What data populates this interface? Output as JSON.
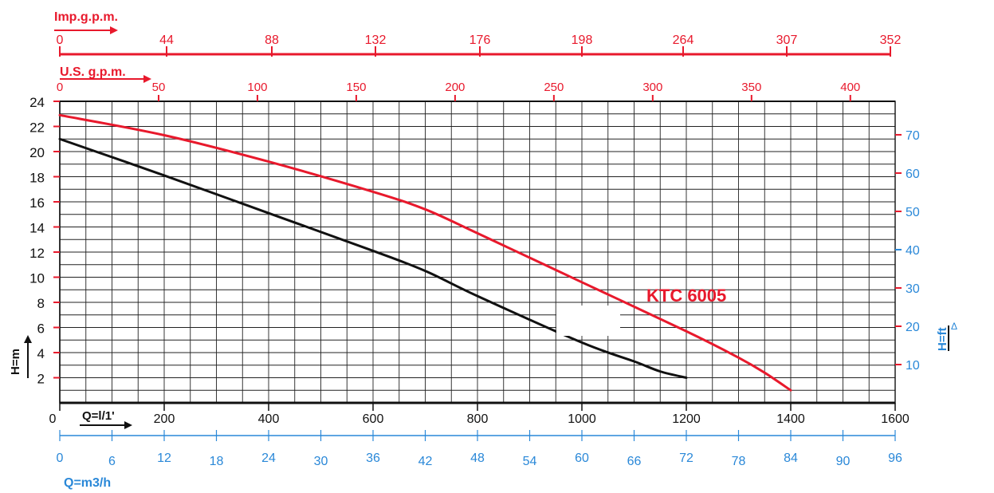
{
  "chart_data": {
    "type": "line",
    "model_label": "KTC 6005",
    "y_left": {
      "label": "H=m",
      "ticks": [
        2,
        4,
        6,
        8,
        10,
        12,
        14,
        16,
        18,
        20,
        22,
        24
      ],
      "range": [
        0,
        24
      ]
    },
    "y_right": {
      "label": "H=ft",
      "ticks": [
        10,
        20,
        30,
        40,
        50,
        60,
        70
      ]
    },
    "x_main": {
      "label": "Q=l/1'",
      "zero_label": "0",
      "ticks": [
        200,
        400,
        600,
        800,
        1000,
        1200,
        1400,
        1600
      ],
      "range": [
        0,
        1600
      ]
    },
    "x_m3h": {
      "label": "Q=m3/h",
      "ticks": [
        "0",
        "6",
        "12",
        "18",
        "24",
        "30",
        "36",
        "42",
        "48",
        "54",
        "60",
        "66",
        "72",
        "78",
        "84",
        "90",
        "96"
      ]
    },
    "x_us": {
      "label": "U.S. g.p.m.",
      "ticks": [
        "0",
        "50",
        "100",
        "150",
        "200",
        "250",
        "300",
        "350",
        "400"
      ]
    },
    "x_imp": {
      "label": "Imp.g.p.m.",
      "ticks": [
        "0",
        "44",
        "88",
        "132",
        "176",
        "198",
        "264",
        "307",
        "352"
      ]
    },
    "series": [
      {
        "color": "#e8192c",
        "points": [
          [
            0,
            22.9
          ],
          [
            200,
            21.3
          ],
          [
            400,
            19.2
          ],
          [
            600,
            16.8
          ],
          [
            700,
            15.4
          ],
          [
            800,
            13.5
          ],
          [
            1000,
            9.6
          ],
          [
            1200,
            5.7
          ],
          [
            1300,
            3.6
          ],
          [
            1350,
            2.4
          ],
          [
            1400,
            1.0
          ]
        ]
      },
      {
        "color": "#111111",
        "points": [
          [
            0,
            21.0
          ],
          [
            200,
            18.1
          ],
          [
            400,
            15.1
          ],
          [
            600,
            12.1
          ],
          [
            700,
            10.5
          ],
          [
            800,
            8.5
          ],
          [
            1000,
            4.8
          ],
          [
            1100,
            3.3
          ],
          [
            1150,
            2.5
          ],
          [
            1200,
            2.0
          ]
        ]
      }
    ]
  }
}
